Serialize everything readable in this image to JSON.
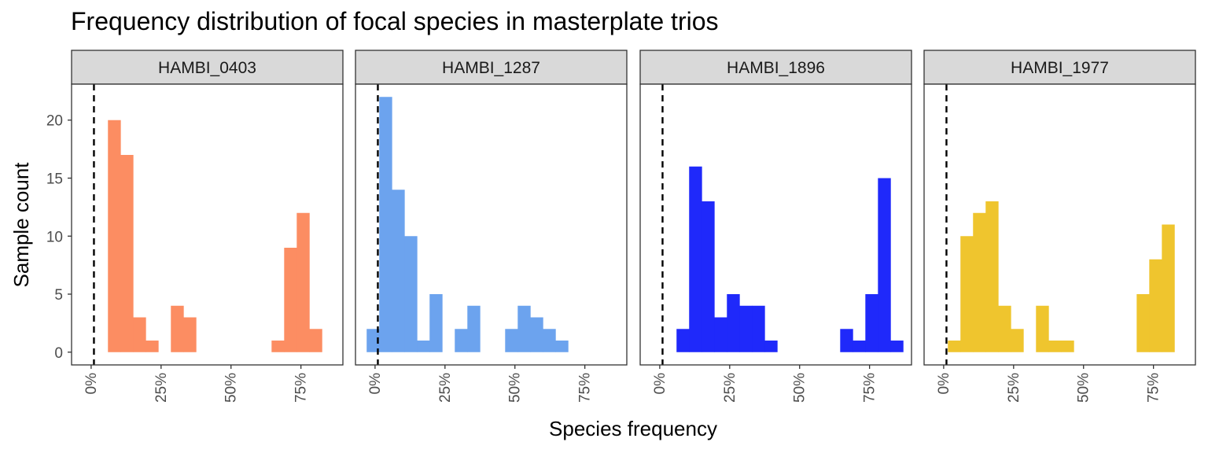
{
  "chart_data": {
    "type": "bar",
    "title": "Frequency distribution of focal species in masterplate trios",
    "xlabel": "Species frequency",
    "ylabel": "Sample count",
    "xlim": [
      -0.07,
      0.9
    ],
    "ylim": [
      -1.1,
      23.1
    ],
    "x_ticks": [
      0,
      0.25,
      0.5,
      0.75
    ],
    "x_tick_labels": [
      "0%",
      "25%",
      "50%",
      "75%"
    ],
    "y_ticks": [
      0,
      5,
      10,
      15,
      20
    ],
    "y_tick_labels": [
      "0",
      "5",
      "10",
      "15",
      "20"
    ],
    "reference_line_x": 0.01,
    "bin_width": 0.045,
    "panels": [
      {
        "name": "HAMBI_0403",
        "color": "#FC8D62",
        "bin_centers": [
          0.0825,
          0.1275,
          0.1725,
          0.2175,
          0.3075,
          0.3525,
          0.6675,
          0.7125,
          0.7575,
          0.8025
        ],
        "counts": [
          20,
          17,
          3,
          1,
          4,
          3,
          1,
          9,
          12,
          2
        ]
      },
      {
        "name": "HAMBI_1287",
        "color": "#6CA3EE",
        "bin_centers": [
          -0.0075,
          0.0375,
          0.0825,
          0.1275,
          0.1725,
          0.2175,
          0.3075,
          0.3525,
          0.4875,
          0.5325,
          0.5775,
          0.6225,
          0.6675
        ],
        "counts": [
          2,
          22,
          14,
          10,
          1,
          5,
          2,
          4,
          2,
          4,
          3,
          2,
          1
        ]
      },
      {
        "name": "HAMBI_1896",
        "color": "#1F29FA",
        "bin_centers": [
          0.0825,
          0.1275,
          0.1725,
          0.2175,
          0.2625,
          0.3075,
          0.3525,
          0.3975,
          0.6675,
          0.7125,
          0.7575,
          0.8025,
          0.8475
        ],
        "counts": [
          2,
          16,
          13,
          3,
          5,
          4,
          4,
          1,
          2,
          1,
          5,
          15,
          1
        ]
      },
      {
        "name": "HAMBI_1977",
        "color": "#EFC52E",
        "bin_centers": [
          0.0375,
          0.0825,
          0.1275,
          0.1725,
          0.2175,
          0.2625,
          0.3525,
          0.3975,
          0.4425,
          0.7125,
          0.7575,
          0.8025
        ],
        "counts": [
          1,
          10,
          12,
          13,
          4,
          2,
          4,
          1,
          1,
          5,
          8,
          11
        ]
      }
    ]
  }
}
